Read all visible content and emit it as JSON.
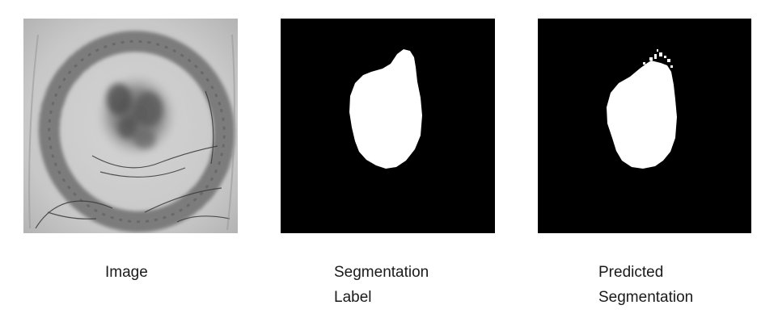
{
  "captions": {
    "image": [
      "Image"
    ],
    "label": [
      "Segmentation",
      "Label"
    ],
    "predicted": [
      "Predicted",
      "Segmentation"
    ]
  },
  "colors": {
    "background": "#ffffff",
    "mask_background": "#000000",
    "mask_foreground": "#ffffff",
    "image_tone": "#c9c9c9"
  }
}
